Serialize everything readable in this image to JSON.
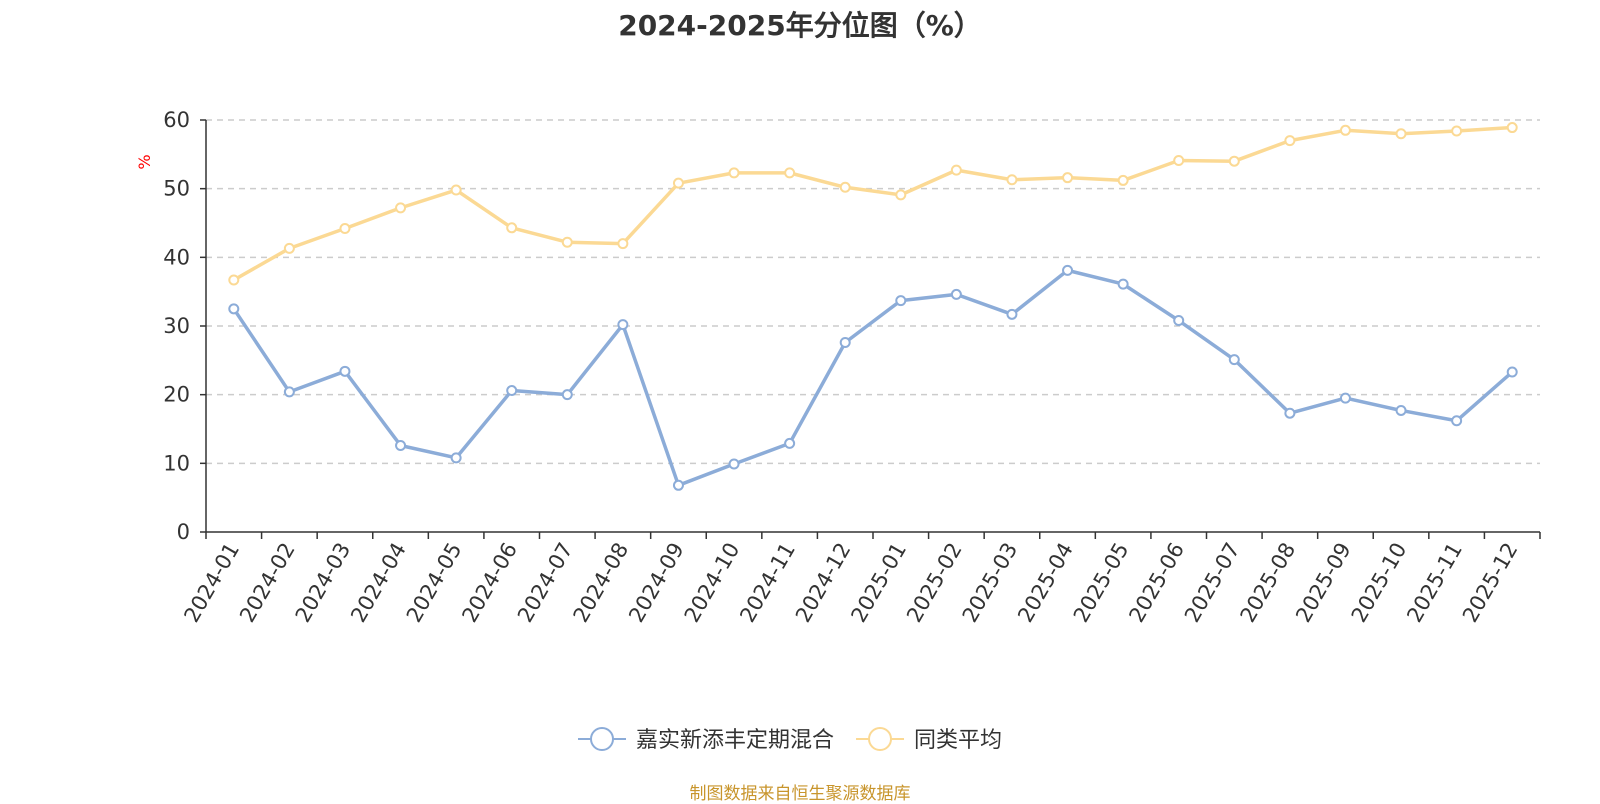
{
  "chart_data": {
    "type": "line",
    "title": "2024-2025年分位图（%）",
    "ylabel": "%",
    "ylim": [
      0,
      60
    ],
    "yticks": [
      "0",
      "10",
      "20",
      "30",
      "40",
      "50",
      "60"
    ],
    "grid": true,
    "legend_position": "bottom-center",
    "categories": [
      "2024-01",
      "2024-02",
      "2024-03",
      "2024-04",
      "2024-05",
      "2024-06",
      "2024-07",
      "2024-08",
      "2024-09",
      "2024-10",
      "2024-11",
      "2024-12",
      "2025-01",
      "2025-02",
      "2025-03",
      "2025-04",
      "2025-05",
      "2025-06",
      "2025-07",
      "2025-08",
      "2025-09",
      "2025-10",
      "2025-11",
      "2025-12"
    ],
    "series": [
      {
        "name": "嘉实新添丰定期混合",
        "color": "#8cacd8",
        "values": [
          32.5,
          20.4,
          23.4,
          12.6,
          10.8,
          20.6,
          20.0,
          30.2,
          6.8,
          9.9,
          12.9,
          27.6,
          33.7,
          34.6,
          31.7,
          38.1,
          36.1,
          30.8,
          25.1,
          17.3,
          19.5,
          17.7,
          16.2,
          23.3
        ]
      },
      {
        "name": "同类平均",
        "color": "#fbd994",
        "values": [
          36.7,
          41.3,
          44.2,
          47.2,
          49.8,
          44.3,
          42.2,
          42.0,
          50.8,
          52.3,
          52.3,
          50.2,
          49.1,
          52.7,
          51.3,
          51.6,
          51.2,
          54.1,
          54.0,
          57.0,
          58.5,
          58.0,
          58.4,
          58.9
        ]
      }
    ]
  },
  "source_note": "制图数据来自恒生聚源数据库"
}
